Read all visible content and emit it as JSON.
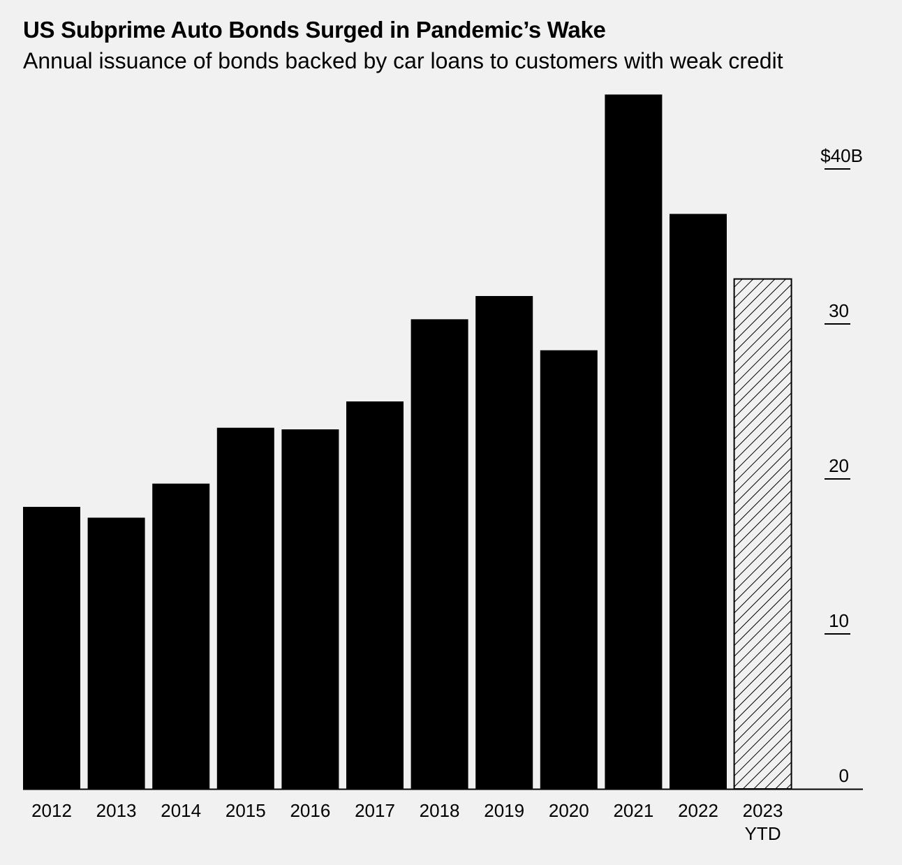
{
  "title": "US Subprime Auto Bonds Surged in Pandemic’s Wake",
  "subtitle": "Annual issuance of bonds backed by car loans to customers with weak credit",
  "chart_data": {
    "type": "bar",
    "title": "US Subprime Auto Bonds Surged in Pandemic’s Wake",
    "subtitle": "Annual issuance of bonds backed by car loans to customers with weak credit",
    "categories": [
      "2012",
      "2013",
      "2014",
      "2015",
      "2016",
      "2017",
      "2018",
      "2019",
      "2020",
      "2021",
      "2022",
      "2023"
    ],
    "category_sublabels": [
      "",
      "",
      "",
      "",
      "",
      "",
      "",
      "",
      "",
      "",
      "",
      "YTD"
    ],
    "values": [
      18.2,
      17.5,
      19.7,
      23.3,
      23.2,
      25.0,
      30.3,
      31.8,
      28.3,
      44.8,
      37.1,
      32.9
    ],
    "hatched": [
      false,
      false,
      false,
      false,
      false,
      false,
      false,
      false,
      false,
      false,
      false,
      true
    ],
    "ylim": [
      0,
      45
    ],
    "yticks": [
      0,
      10,
      20,
      30,
      40
    ],
    "ytick_labels": [
      "0",
      "10",
      "20",
      "30",
      "$40B"
    ],
    "y_axis_position": "right",
    "grid": false,
    "bar_color": "#000000",
    "background_color": "#f1f1f1"
  }
}
